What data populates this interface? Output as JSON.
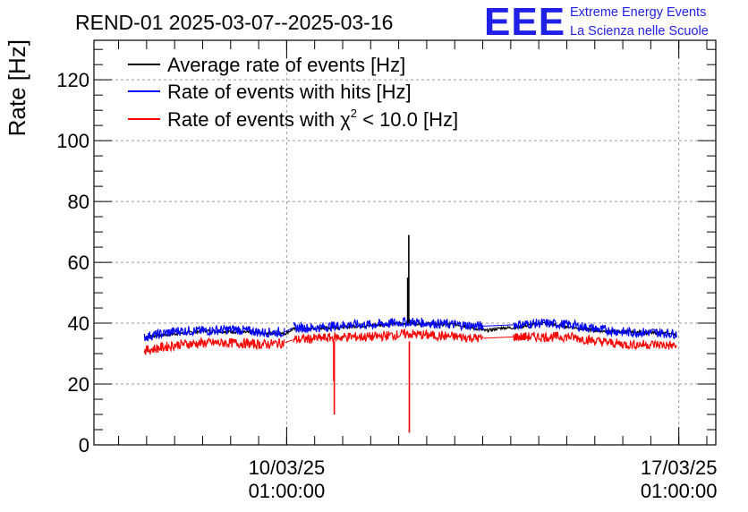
{
  "chart_data": {
    "type": "line",
    "title": "REND-01 2025-03-07--2025-03-16",
    "ylabel": "Rate [Hz]",
    "xlabel": "",
    "ylim": [
      0,
      133
    ],
    "xlim_days": [
      0,
      11.1
    ],
    "grid": true,
    "legend_position": "top-left",
    "y_ticks": [
      0,
      20,
      40,
      60,
      80,
      100,
      120
    ],
    "x_ticks": [
      {
        "day": 3.44,
        "date": "10/03/25",
        "time": "01:00:00"
      },
      {
        "day": 10.44,
        "date": "17/03/25",
        "time": "01:00:00"
      }
    ],
    "series": [
      {
        "name": "Average rate of events [Hz]",
        "color": "#000000",
        "points": [
          [
            0.9,
            35.5
          ],
          [
            2.0,
            37.5
          ],
          [
            3.4,
            36.5
          ],
          [
            3.55,
            38
          ],
          [
            4.2,
            38.5
          ],
          [
            5.6,
            40
          ],
          [
            6.5,
            39.5
          ],
          [
            7.0,
            37.5
          ],
          [
            7.3,
            38.5
          ],
          [
            7.5,
            38.5
          ],
          [
            8.0,
            40
          ],
          [
            9.0,
            37.5
          ],
          [
            10.4,
            36.5
          ]
        ],
        "spikes": [
          {
            "day": 5.62,
            "peak": 69.0
          },
          {
            "day": 5.6,
            "peak": 55.0
          }
        ]
      },
      {
        "name": "Rate of events with hits [Hz]",
        "color": "#0000ff",
        "points": [
          [
            0.9,
            35.5
          ],
          [
            1.5,
            37.5
          ],
          [
            2.0,
            37.5
          ],
          [
            2.5,
            38
          ],
          [
            3.0,
            37
          ],
          [
            3.4,
            37
          ],
          [
            3.5,
            38.5
          ],
          [
            4.0,
            38.5
          ],
          [
            4.5,
            39.5
          ],
          [
            5.0,
            39.5
          ],
          [
            5.6,
            40.5
          ],
          [
            6.0,
            40
          ],
          [
            6.5,
            39.5
          ],
          [
            6.9,
            39
          ],
          [
            7.5,
            39.5
          ],
          [
            8.0,
            40
          ],
          [
            8.5,
            39.5
          ],
          [
            9.0,
            38
          ],
          [
            9.5,
            37
          ],
          [
            10.0,
            37
          ],
          [
            10.4,
            36.5
          ]
        ],
        "gaps": [
          [
            3.41,
            3.55
          ],
          [
            6.95,
            7.48
          ]
        ]
      },
      {
        "name": "Rate of events with χ² < 10.0 [Hz]",
        "color": "#ff0000",
        "points": [
          [
            0.9,
            31
          ],
          [
            1.5,
            33
          ],
          [
            2.0,
            33.5
          ],
          [
            2.5,
            33.5
          ],
          [
            3.0,
            33
          ],
          [
            3.4,
            33.5
          ],
          [
            3.5,
            34.5
          ],
          [
            4.0,
            35
          ],
          [
            4.5,
            35.5
          ],
          [
            5.0,
            35.5
          ],
          [
            5.6,
            36.5
          ],
          [
            6.0,
            36
          ],
          [
            6.5,
            35.5
          ],
          [
            6.9,
            35
          ],
          [
            7.5,
            35.5
          ],
          [
            8.0,
            35.5
          ],
          [
            8.5,
            35.5
          ],
          [
            9.0,
            34
          ],
          [
            9.5,
            33
          ],
          [
            10.0,
            33
          ],
          [
            10.4,
            32.5
          ]
        ],
        "gaps": [
          [
            3.41,
            3.55
          ],
          [
            6.95,
            7.48
          ]
        ],
        "dips": [
          {
            "day": 4.29,
            "low": 10.0
          },
          {
            "day": 4.28,
            "low": 21.0
          },
          {
            "day": 5.63,
            "low": 4.0
          }
        ]
      }
    ]
  },
  "legend": {
    "items": [
      {
        "label": "Average rate of events [Hz]",
        "color": "#000000"
      },
      {
        "label": "Rate of events with hits [Hz]",
        "color": "#0000ff"
      },
      {
        "label": "Rate of events with χ",
        "sup": "2",
        "label_suffix": " < 10.0 [Hz]",
        "color": "#ff0000"
      }
    ]
  },
  "logo": {
    "mark": "EEE",
    "line1": "Extreme Energy Events",
    "line2": "La Scienza nelle Scuole",
    "color": "#1f1fe6"
  }
}
